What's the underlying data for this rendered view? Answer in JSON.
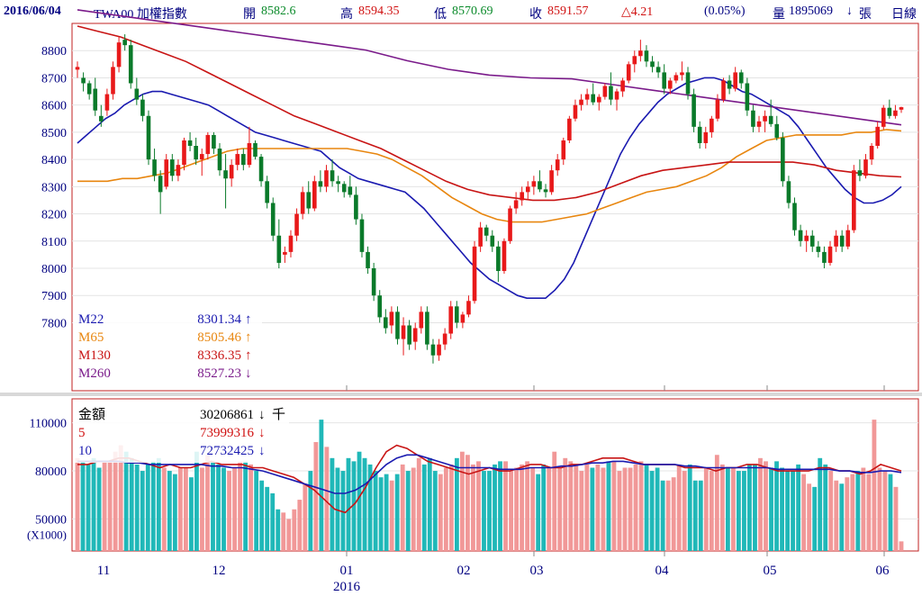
{
  "header": {
    "date": "2016/06/04",
    "symbol": "TWA00 加權指數",
    "open_label": "開",
    "open": "8582.6",
    "high_label": "高",
    "high": "8594.35",
    "low_label": "低",
    "low": "8570.69",
    "close_label": "收",
    "close": "8591.57",
    "change": "△4.21",
    "change_pct": "(0.05%)",
    "volume_label": "量",
    "volume": "1895069",
    "volume_arrow": "↓",
    "volume_unit": "張",
    "period": "日線"
  },
  "colors": {
    "up": "#e8191a",
    "down": "#0a7a2a",
    "ma22": "#1a1ab0",
    "ma65": "#e8860f",
    "ma130": "#c81414",
    "ma260": "#7a1a8a",
    "vol_up": "#f19898",
    "vol_down": "#20b8b8",
    "panel_border": "#c02020",
    "text_dark": "#000080",
    "value_red": "#d01010",
    "value_green": "#0a8a2a"
  },
  "legend_price": [
    {
      "name": "M22",
      "value": "8301.34",
      "arrow": "↑",
      "color": "#1a1ab0"
    },
    {
      "name": "M65",
      "value": "8505.46",
      "arrow": "↑",
      "color": "#e8860f"
    },
    {
      "name": "M130",
      "value": "8336.35",
      "arrow": "↑",
      "color": "#c81414"
    },
    {
      "name": "M260",
      "value": "8527.23",
      "arrow": "↓",
      "color": "#7a1a8a"
    }
  ],
  "legend_volume": [
    {
      "name": "金額",
      "value": "30206861",
      "arrow": "↓",
      "suffix": "千",
      "color": "#000000"
    },
    {
      "name": "5",
      "value": "73999316",
      "arrow": "↓",
      "suffix": "",
      "color": "#d01010"
    },
    {
      "name": "10",
      "value": "72732425",
      "arrow": "↓",
      "suffix": "",
      "color": "#1a1ab0"
    }
  ],
  "chart_data": {
    "type": "candlestick",
    "price_axis": {
      "ticks": [
        7800,
        7900,
        8000,
        8100,
        8200,
        8300,
        8400,
        8500,
        8600,
        8700,
        8800
      ],
      "range": [
        7550,
        8900
      ]
    },
    "volume_axis": {
      "ticks": [
        50000,
        80000,
        110000
      ],
      "unit_label": "(X1000)",
      "range": [
        30000,
        125000
      ]
    },
    "x_ticks": [
      "11",
      "12",
      "01",
      "02",
      "03",
      "04",
      "05",
      "06"
    ],
    "year_label": "2016",
    "ohlc": [
      [
        8730,
        8760,
        8700,
        8740
      ],
      [
        8700,
        8720,
        8650,
        8680
      ],
      [
        8680,
        8690,
        8620,
        8640
      ],
      [
        8660,
        8700,
        8560,
        8580
      ],
      [
        8560,
        8600,
        8520,
        8540
      ],
      [
        8580,
        8660,
        8560,
        8640
      ],
      [
        8640,
        8760,
        8620,
        8740
      ],
      [
        8740,
        8850,
        8720,
        8830
      ],
      [
        8840,
        8860,
        8800,
        8820
      ],
      [
        8820,
        8840,
        8660,
        8680
      ],
      [
        8660,
        8700,
        8600,
        8620
      ],
      [
        8620,
        8640,
        8540,
        8560
      ],
      [
        8560,
        8580,
        8380,
        8400
      ],
      [
        8400,
        8440,
        8320,
        8340
      ],
      [
        8340,
        8360,
        8200,
        8280
      ],
      [
        8300,
        8420,
        8290,
        8400
      ],
      [
        8400,
        8420,
        8320,
        8340
      ],
      [
        8340,
        8400,
        8320,
        8380
      ],
      [
        8380,
        8480,
        8360,
        8470
      ],
      [
        8470,
        8500,
        8430,
        8450
      ],
      [
        8450,
        8480,
        8380,
        8400
      ],
      [
        8400,
        8440,
        8340,
        8420
      ],
      [
        8420,
        8500,
        8400,
        8490
      ],
      [
        8490,
        8500,
        8420,
        8440
      ],
      [
        8440,
        8460,
        8340,
        8360
      ],
      [
        8360,
        8420,
        8220,
        8330
      ],
      [
        8330,
        8400,
        8300,
        8380
      ],
      [
        8380,
        8440,
        8360,
        8420
      ],
      [
        8420,
        8440,
        8360,
        8380
      ],
      [
        8380,
        8520,
        8370,
        8460
      ],
      [
        8460,
        8470,
        8400,
        8410
      ],
      [
        8410,
        8420,
        8300,
        8320
      ],
      [
        8320,
        8340,
        8220,
        8240
      ],
      [
        8240,
        8260,
        8100,
        8120
      ],
      [
        8120,
        8180,
        8000,
        8020
      ],
      [
        8050,
        8080,
        8020,
        8060
      ],
      [
        8060,
        8140,
        8040,
        8120
      ],
      [
        8120,
        8220,
        8100,
        8200
      ],
      [
        8200,
        8300,
        8180,
        8280
      ],
      [
        8280,
        8320,
        8200,
        8220
      ],
      [
        8220,
        8340,
        8210,
        8320
      ],
      [
        8320,
        8360,
        8280,
        8300
      ],
      [
        8300,
        8380,
        8280,
        8360
      ],
      [
        8360,
        8400,
        8300,
        8320
      ],
      [
        8320,
        8340,
        8280,
        8310
      ],
      [
        8310,
        8320,
        8260,
        8280
      ],
      [
        8300,
        8340,
        8260,
        8270
      ],
      [
        8270,
        8300,
        8160,
        8180
      ],
      [
        8180,
        8200,
        8040,
        8060
      ],
      [
        8060,
        8080,
        7980,
        8000
      ],
      [
        8000,
        8020,
        7880,
        7900
      ],
      [
        7900,
        7920,
        7800,
        7820
      ],
      [
        7820,
        7850,
        7760,
        7780
      ],
      [
        7790,
        7860,
        7760,
        7840
      ],
      [
        7840,
        7860,
        7720,
        7740
      ],
      [
        7740,
        7820,
        7680,
        7790
      ],
      [
        7790,
        7810,
        7700,
        7720
      ],
      [
        7730,
        7800,
        7700,
        7780
      ],
      [
        7780,
        7860,
        7760,
        7840
      ],
      [
        7840,
        7860,
        7700,
        7720
      ],
      [
        7720,
        7740,
        7650,
        7680
      ],
      [
        7680,
        7740,
        7660,
        7720
      ],
      [
        7720,
        7780,
        7700,
        7760
      ],
      [
        7760,
        7880,
        7740,
        7860
      ],
      [
        7860,
        7880,
        7780,
        7800
      ],
      [
        7800,
        7840,
        7780,
        7830
      ],
      [
        7830,
        7900,
        7820,
        7880
      ],
      [
        7880,
        8100,
        7870,
        8080
      ],
      [
        8080,
        8170,
        8060,
        8150
      ],
      [
        8150,
        8160,
        8100,
        8120
      ],
      [
        8120,
        8140,
        8060,
        8080
      ],
      [
        8080,
        8100,
        7950,
        7990
      ],
      [
        7990,
        8110,
        7980,
        8100
      ],
      [
        8100,
        8230,
        8090,
        8220
      ],
      [
        8220,
        8280,
        8200,
        8250
      ],
      [
        8250,
        8300,
        8230,
        8280
      ],
      [
        8280,
        8320,
        8250,
        8300
      ],
      [
        8300,
        8340,
        8270,
        8320
      ],
      [
        8320,
        8360,
        8280,
        8290
      ],
      [
        8290,
        8310,
        8260,
        8280
      ],
      [
        8280,
        8380,
        8270,
        8360
      ],
      [
        8360,
        8420,
        8340,
        8400
      ],
      [
        8400,
        8480,
        8380,
        8470
      ],
      [
        8470,
        8560,
        8460,
        8550
      ],
      [
        8550,
        8620,
        8540,
        8600
      ],
      [
        8600,
        8640,
        8580,
        8620
      ],
      [
        8620,
        8660,
        8600,
        8640
      ],
      [
        8640,
        8680,
        8600,
        8610
      ],
      [
        8610,
        8640,
        8580,
        8630
      ],
      [
        8630,
        8680,
        8620,
        8670
      ],
      [
        8670,
        8720,
        8600,
        8620
      ],
      [
        8620,
        8660,
        8580,
        8650
      ],
      [
        8650,
        8700,
        8630,
        8690
      ],
      [
        8690,
        8760,
        8680,
        8750
      ],
      [
        8750,
        8800,
        8720,
        8780
      ],
      [
        8780,
        8840,
        8760,
        8800
      ],
      [
        8800,
        8820,
        8740,
        8760
      ],
      [
        8760,
        8780,
        8720,
        8740
      ],
      [
        8740,
        8760,
        8700,
        8720
      ],
      [
        8720,
        8750,
        8640,
        8660
      ],
      [
        8660,
        8700,
        8640,
        8690
      ],
      [
        8690,
        8720,
        8680,
        8710
      ],
      [
        8710,
        8760,
        8690,
        8720
      ],
      [
        8720,
        8740,
        8620,
        8640
      ],
      [
        8640,
        8660,
        8500,
        8520
      ],
      [
        8520,
        8540,
        8440,
        8460
      ],
      [
        8460,
        8520,
        8440,
        8500
      ],
      [
        8500,
        8560,
        8480,
        8550
      ],
      [
        8550,
        8640,
        8540,
        8620
      ],
      [
        8620,
        8700,
        8610,
        8690
      ],
      [
        8690,
        8710,
        8640,
        8660
      ],
      [
        8660,
        8740,
        8650,
        8720
      ],
      [
        8720,
        8730,
        8660,
        8680
      ],
      [
        8680,
        8700,
        8560,
        8580
      ],
      [
        8580,
        8600,
        8500,
        8520
      ],
      [
        8520,
        8560,
        8500,
        8540
      ],
      [
        8540,
        8580,
        8500,
        8560
      ],
      [
        8560,
        8620,
        8520,
        8530
      ],
      [
        8530,
        8560,
        8470,
        8480
      ],
      [
        8480,
        8500,
        8300,
        8320
      ],
      [
        8320,
        8340,
        8220,
        8240
      ],
      [
        8240,
        8260,
        8120,
        8140
      ],
      [
        8140,
        8160,
        8080,
        8100
      ],
      [
        8100,
        8140,
        8060,
        8120
      ],
      [
        8120,
        8140,
        8060,
        8080
      ],
      [
        8080,
        8100,
        8040,
        8060
      ],
      [
        8060,
        8080,
        8000,
        8020
      ],
      [
        8020,
        8100,
        8010,
        8080
      ],
      [
        8080,
        8140,
        8060,
        8120
      ],
      [
        8120,
        8140,
        8060,
        8080
      ],
      [
        8080,
        8160,
        8070,
        8140
      ],
      [
        8140,
        8380,
        8130,
        8360
      ],
      [
        8360,
        8400,
        8320,
        8340
      ],
      [
        8340,
        8420,
        8330,
        8400
      ],
      [
        8400,
        8460,
        8380,
        8450
      ],
      [
        8450,
        8540,
        8440,
        8520
      ],
      [
        8520,
        8600,
        8510,
        8590
      ],
      [
        8590,
        8620,
        8550,
        8560
      ],
      [
        8560,
        8600,
        8550,
        8580
      ],
      [
        8583,
        8594,
        8571,
        8592
      ]
    ],
    "ma22": [
      8460,
      8490,
      8520,
      8550,
      8570,
      8600,
      8620,
      8640,
      8650,
      8650,
      8640,
      8630,
      8620,
      8610,
      8600,
      8580,
      8560,
      8540,
      8520,
      8500,
      8490,
      8480,
      8470,
      8460,
      8450,
      8440,
      8430,
      8400,
      8370,
      8350,
      8330,
      8320,
      8310,
      8300,
      8290,
      8280,
      8250,
      8220,
      8180,
      8140,
      8100,
      8060,
      8020,
      7990,
      7960,
      7940,
      7920,
      7900,
      7890,
      7890,
      7890,
      7920,
      7960,
      8020,
      8100,
      8180,
      8260,
      8340,
      8420,
      8480,
      8530,
      8570,
      8610,
      8640,
      8660,
      8680,
      8690,
      8700,
      8700,
      8690,
      8670,
      8650,
      8640,
      8620,
      8600,
      8580,
      8560,
      8520,
      8470,
      8420,
      8370,
      8330,
      8290,
      8260,
      8240,
      8240,
      8250,
      8270,
      8300
    ],
    "ma65": [
      8320,
      8320,
      8320,
      8330,
      8330,
      8340,
      8350,
      8370,
      8390,
      8410,
      8430,
      8440,
      8440,
      8440,
      8440,
      8440,
      8440,
      8440,
      8440,
      8430,
      8420,
      8400,
      8370,
      8340,
      8300,
      8260,
      8230,
      8200,
      8180,
      8170,
      8170,
      8170,
      8180,
      8190,
      8200,
      8220,
      8240,
      8260,
      8280,
      8290,
      8300,
      8320,
      8340,
      8370,
      8410,
      8440,
      8470,
      8480,
      8490,
      8490,
      8490,
      8490,
      8500,
      8500,
      8510,
      8505
    ],
    "ma130": [
      8890,
      8870,
      8850,
      8820,
      8790,
      8760,
      8720,
      8680,
      8640,
      8600,
      8560,
      8530,
      8500,
      8470,
      8440,
      8400,
      8360,
      8320,
      8290,
      8270,
      8260,
      8250,
      8250,
      8260,
      8280,
      8310,
      8340,
      8360,
      8370,
      8380,
      8390,
      8390,
      8390,
      8390,
      8380,
      8360,
      8350,
      8340,
      8336
    ],
    "ma260_range": [
      8950,
      8527
    ],
    "volume": [
      88,
      86,
      84,
      88,
      82,
      86,
      86,
      92,
      96,
      92,
      88,
      84,
      80,
      84,
      86,
      88,
      82,
      80,
      78,
      82,
      82,
      76,
      92,
      82,
      90,
      86,
      84,
      82,
      80,
      82,
      86,
      86,
      84,
      80,
      74,
      70,
      66,
      56,
      54,
      50,
      56,
      62,
      72,
      80,
      98,
      112,
      95,
      88,
      82,
      80,
      88,
      86,
      92,
      88,
      84,
      80,
      76,
      78,
      74,
      78,
      84,
      80,
      82,
      88,
      84,
      88,
      80,
      78,
      82,
      84,
      88,
      92,
      90,
      84,
      86,
      80,
      80,
      84,
      86,
      86,
      80,
      82,
      84,
      86,
      82,
      78,
      84,
      82,
      92,
      82,
      88,
      86,
      84,
      80,
      84,
      82,
      84,
      82,
      86,
      86,
      80,
      82,
      82,
      84,
      86,
      84,
      80,
      82,
      74,
      74,
      76,
      84,
      80,
      84,
      74,
      74,
      82,
      80,
      90,
      84,
      82,
      82,
      80,
      80,
      84,
      84,
      88,
      86,
      82,
      86,
      82,
      80,
      80,
      84,
      78,
      72,
      70,
      88,
      84,
      80,
      74,
      72,
      76,
      78,
      80,
      82,
      78,
      112,
      82,
      80,
      78,
      70,
      36
    ],
    "vol_ma5": [
      84,
      84,
      86,
      86,
      88,
      88,
      86,
      84,
      82,
      84,
      82,
      82,
      84,
      86,
      84,
      84,
      84,
      82,
      82,
      80,
      78,
      76,
      72,
      68,
      62,
      56,
      54,
      60,
      70,
      82,
      92,
      96,
      94,
      90,
      86,
      84,
      82,
      80,
      78,
      80,
      82,
      80,
      80,
      82,
      84,
      84,
      82,
      82,
      84,
      84,
      86,
      88,
      88,
      88,
      86,
      84,
      84,
      84,
      84,
      82,
      82,
      82,
      80,
      82,
      82,
      84,
      84,
      82,
      80,
      80,
      80,
      80,
      82,
      82,
      80,
      80,
      78,
      80,
      84,
      82,
      80
    ],
    "vol_ma10": [
      86,
      86,
      86,
      86,
      86,
      85,
      85,
      84,
      84,
      84,
      84,
      84,
      84,
      83,
      83,
      82,
      82,
      81,
      80,
      78,
      76,
      74,
      72,
      70,
      68,
      66,
      66,
      68,
      72,
      78,
      84,
      88,
      90,
      90,
      88,
      86,
      84,
      82,
      82,
      82,
      82,
      81,
      81,
      81,
      82,
      82,
      82,
      83,
      83,
      84,
      85,
      85,
      86,
      86,
      85,
      84,
      84,
      84,
      84,
      83,
      83,
      82,
      82,
      82,
      82,
      82,
      82,
      82,
      81,
      81,
      81,
      81,
      81,
      81,
      80,
      80,
      79,
      79,
      80,
      80,
      79
    ]
  }
}
